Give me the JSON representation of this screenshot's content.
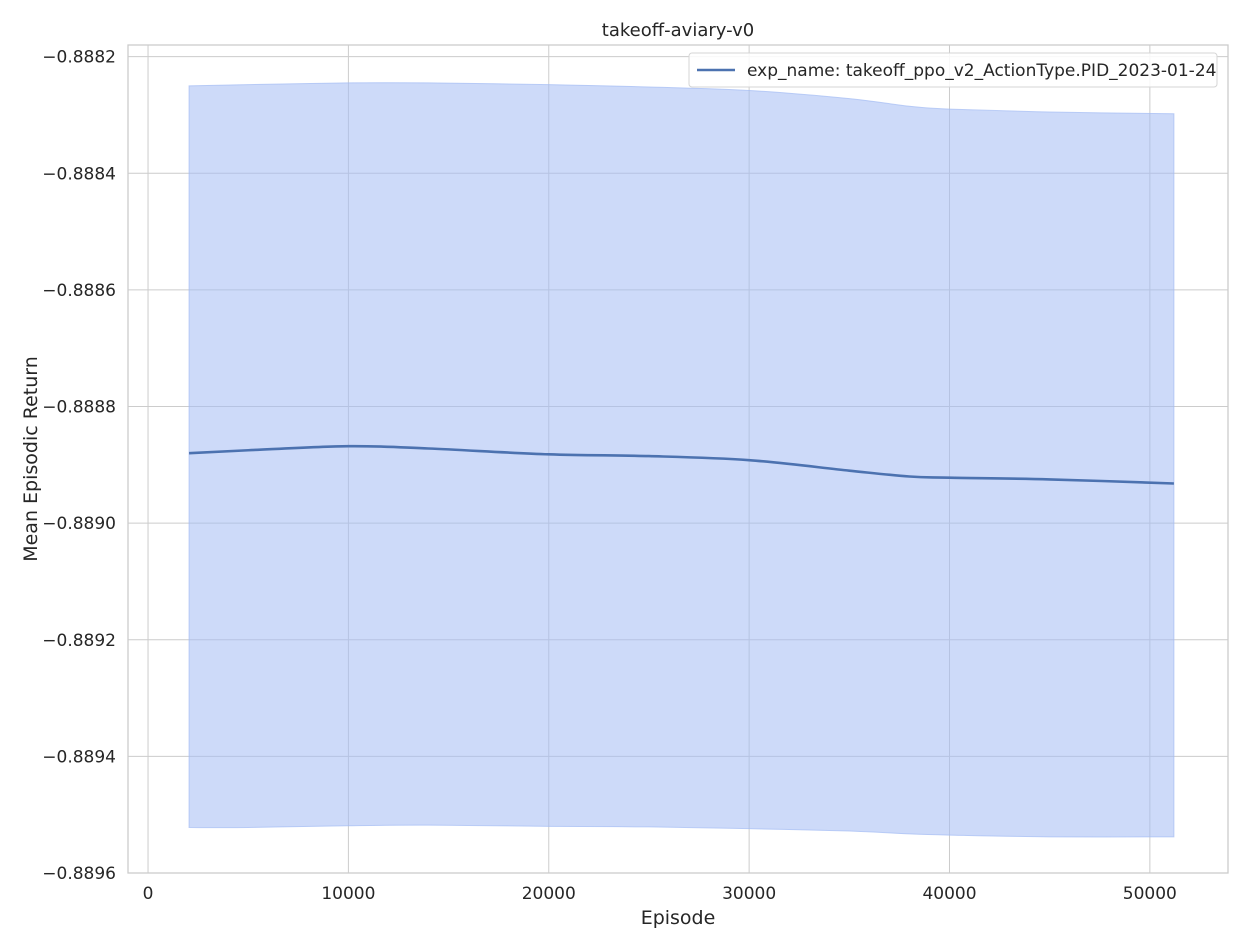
{
  "chart_data": {
    "type": "line",
    "title": "takeoff-aviary-v0",
    "xlabel": "Episode",
    "ylabel": "Mean Episodic Return",
    "xlim": [
      -1000,
      53900
    ],
    "ylim": [
      -0.8896,
      -0.88818
    ],
    "xticks": [
      0,
      10000,
      20000,
      30000,
      40000,
      50000
    ],
    "xtick_labels": [
      "0",
      "10000",
      "20000",
      "30000",
      "40000",
      "50000"
    ],
    "yticks": [
      -0.8896,
      -0.8894,
      -0.8892,
      -0.889,
      -0.8888,
      -0.8886,
      -0.8884,
      -0.8882
    ],
    "ytick_labels": [
      "−0.8896",
      "−0.8894",
      "−0.8892",
      "−0.8890",
      "−0.8888",
      "−0.8886",
      "−0.8884",
      "−0.8882"
    ],
    "grid": true,
    "legend_position": "top-right",
    "series": [
      {
        "name": "exp_name: takeoff_ppo_v2_ActionType.PID_2023-01-24",
        "color": "#4c72b0",
        "band_color": "#a4bcf4",
        "x": [
          2048,
          5000,
          10000,
          14000,
          20000,
          25000,
          30000,
          35000,
          38000,
          40000,
          45000,
          51200
        ],
        "y": [
          -0.88888,
          -0.888875,
          -0.888868,
          -0.888872,
          -0.888882,
          -0.888885,
          -0.888892,
          -0.88891,
          -0.88892,
          -0.888922,
          -0.888925,
          -0.888932
        ],
        "upper": [
          -0.88825,
          -0.888248,
          -0.888245,
          -0.888245,
          -0.888248,
          -0.888252,
          -0.888258,
          -0.888272,
          -0.888285,
          -0.88829,
          -0.888295,
          -0.888298
        ],
        "lower": [
          -0.889522,
          -0.889522,
          -0.889519,
          -0.889518,
          -0.88952,
          -0.889521,
          -0.889524,
          -0.889528,
          -0.889533,
          -0.889535,
          -0.889538,
          -0.889538
        ]
      }
    ]
  }
}
